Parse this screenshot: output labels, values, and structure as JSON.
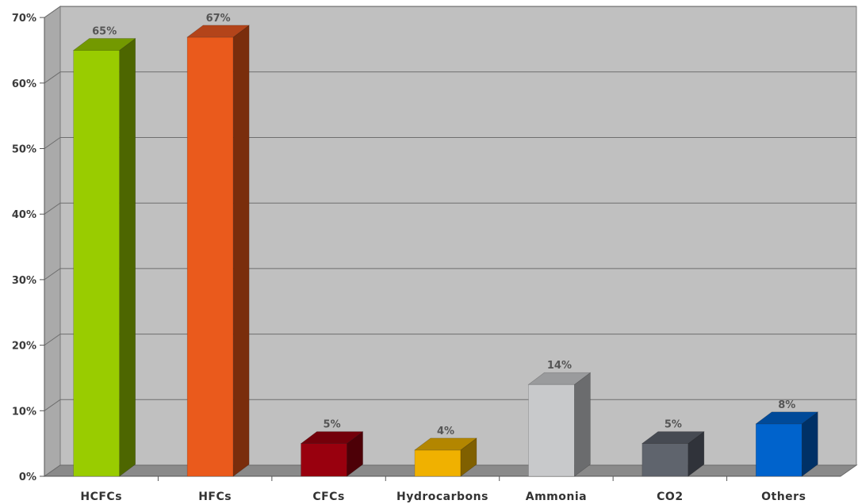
{
  "chart_data": {
    "type": "bar",
    "title": "",
    "xlabel": "",
    "ylabel": "",
    "categories": [
      "HCFCs",
      "HFCs",
      "CFCs",
      "Hydrocarbons",
      "Ammonia",
      "CO2",
      "Others"
    ],
    "values": [
      65,
      67,
      5,
      4,
      14,
      5,
      8
    ],
    "data_labels": [
      "65%",
      "67%",
      "5%",
      "4%",
      "14%",
      "5%",
      "8%"
    ],
    "ylim": [
      0,
      70
    ],
    "yticks": [
      0,
      10,
      20,
      30,
      40,
      50,
      60,
      70
    ],
    "ytick_labels": [
      "0%",
      "10%",
      "20%",
      "30%",
      "40%",
      "50%",
      "60%",
      "70%"
    ],
    "grid": true,
    "style": "3d-column",
    "colors": {
      "plot_background": "#c0c0c0",
      "floor": "#8a8a8a",
      "side_wall": "#aaaaaa",
      "gridline": "#6e6e6e",
      "bars": [
        {
          "front": "#99cc00",
          "side": "#4d6600",
          "top": "#739900"
        },
        {
          "front": "#ea5a1c",
          "side": "#7a2d0c",
          "top": "#b3441a"
        },
        {
          "front": "#99000e",
          "side": "#4d0007",
          "top": "#73000a"
        },
        {
          "front": "#f0b100",
          "side": "#806000",
          "top": "#b38600"
        },
        {
          "front": "#c8c9cb",
          "side": "#6b6c6e",
          "top": "#9a9b9d"
        },
        {
          "front": "#5f646d",
          "side": "#30333a",
          "top": "#464a52"
        },
        {
          "front": "#0063cc",
          "side": "#003166",
          "top": "#004a99"
        }
      ]
    }
  }
}
